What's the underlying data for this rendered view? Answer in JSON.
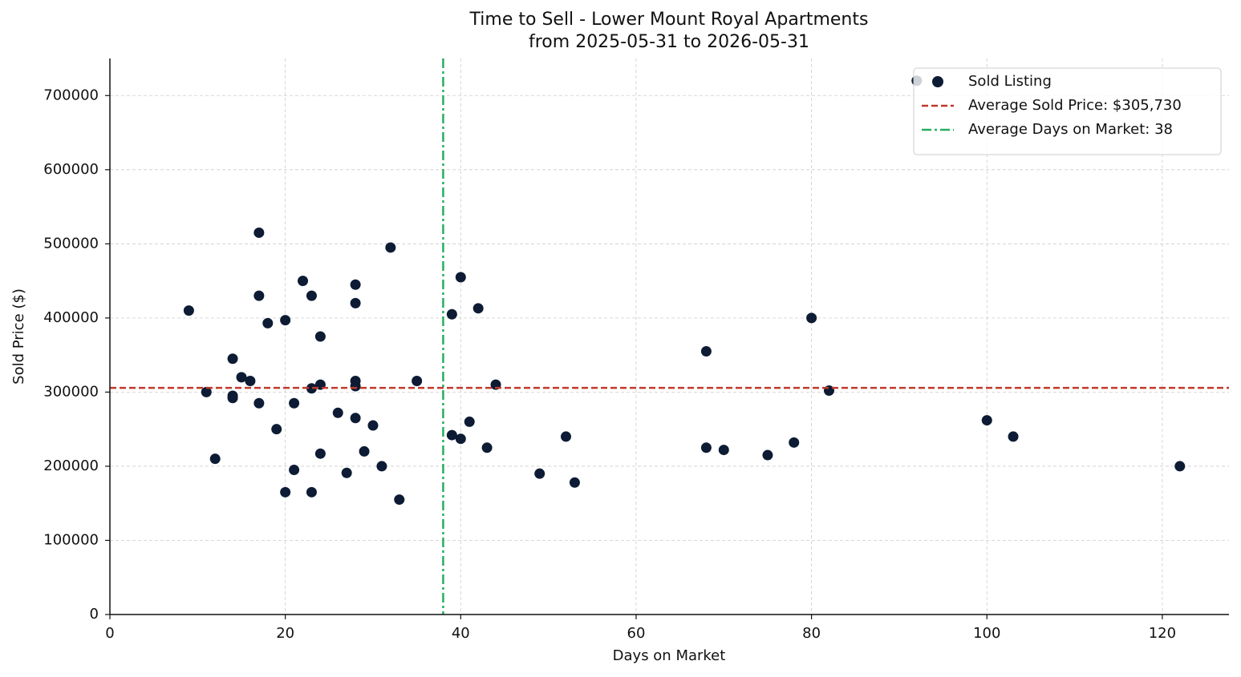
{
  "chart_data": {
    "type": "scatter",
    "title": "Time to Sell - Lower Mount Royal Apartments",
    "subtitle": "from 2025-05-31 to 2026-05-31",
    "x_label": "Days on Market",
    "y_label": "Sold Price ($)",
    "xlim": [
      0,
      127.6
    ],
    "ylim": [
      0,
      750000
    ],
    "xticks": [
      0,
      20,
      40,
      60,
      80,
      100,
      120
    ],
    "yticks": [
      0,
      100000,
      200000,
      300000,
      400000,
      500000,
      600000,
      700000
    ],
    "grid": true,
    "legend": "upper right",
    "series": [
      {
        "name": "Sold Listing",
        "color": "#0d1b34",
        "x": [
          9,
          11,
          12,
          14,
          14,
          14,
          15,
          16,
          17,
          17,
          17,
          18,
          19,
          20,
          20,
          21,
          21,
          22,
          23,
          23,
          23,
          24,
          24,
          24,
          26,
          27,
          28,
          28,
          28,
          28,
          28,
          29,
          30,
          31,
          32,
          33,
          35,
          39,
          39,
          40,
          40,
          41,
          42,
          43,
          44,
          49,
          52,
          53,
          68,
          68,
          70,
          75,
          78,
          80,
          82,
          92,
          100,
          103,
          122
        ],
        "values": [
          410000,
          300000,
          210000,
          345000,
          295000,
          292000,
          320000,
          315000,
          515000,
          430000,
          285000,
          393000,
          250000,
          397000,
          165000,
          285000,
          195000,
          450000,
          430000,
          305000,
          165000,
          375000,
          310000,
          217000,
          272000,
          191000,
          445000,
          420000,
          315000,
          308000,
          265000,
          220000,
          255000,
          200000,
          495000,
          155000,
          315000,
          405000,
          242000,
          455000,
          237000,
          260000,
          413000,
          225000,
          310000,
          190000,
          240000,
          178000,
          355000,
          225000,
          222000,
          215000,
          232000,
          400000,
          302000,
          720000,
          262000,
          240000,
          200000
        ]
      }
    ],
    "hlines": [
      {
        "value": 305730,
        "label": "Average Sold Price: $305,730",
        "color": "#c0392b",
        "style": "dashed"
      }
    ],
    "vlines": [
      {
        "value": 38,
        "label": "Average Days on Market: 38",
        "color": "#27ae60",
        "style": "dashdot"
      }
    ]
  }
}
